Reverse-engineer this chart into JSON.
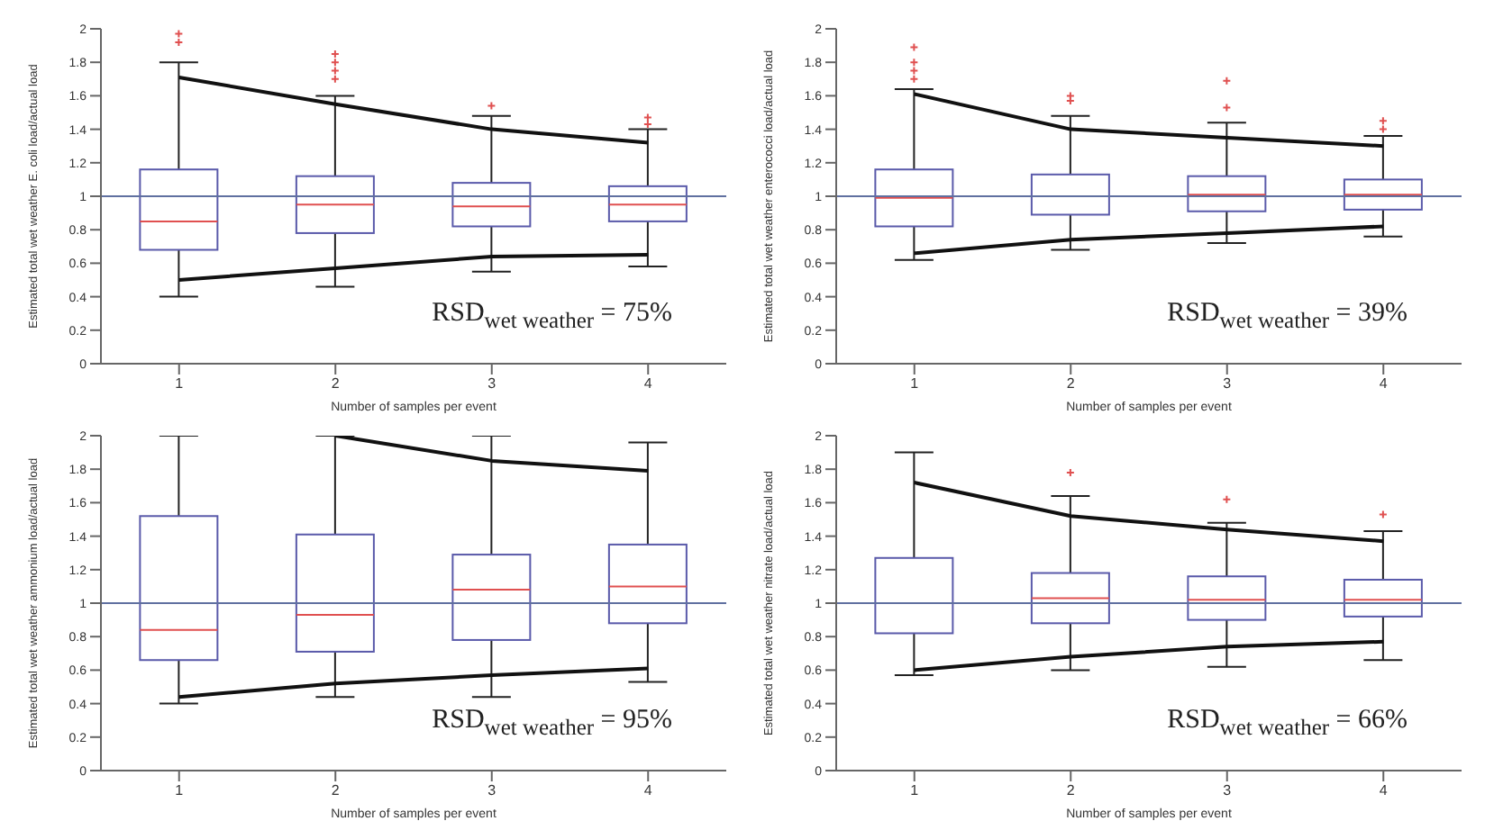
{
  "chart_data": [
    {
      "type": "box",
      "xlabel": "Number of samples per event",
      "ylabel": "Estimated total wet weather E. coli load/actual load",
      "categories": [
        "1",
        "2",
        "3",
        "4"
      ],
      "ylim": [
        0,
        2
      ],
      "yticks": [
        0,
        0.2,
        0.4,
        0.6,
        0.8,
        1,
        1.2,
        1.4,
        1.6,
        1.8,
        2
      ],
      "ref_lines": [
        {
          "axis": "y",
          "value": 1,
          "color": "#6070a0"
        }
      ],
      "annotations": [
        "RSD$_{wet weather}$ = 75%"
      ],
      "series": [
        {
          "color": "#5a5aaa",
          "boxes": [
            {
              "low": 0.4,
              "q1": 0.68,
              "median": 0.85,
              "q3": 1.16,
              "high": 1.8,
              "outliers": [
                1.92,
                1.97
              ]
            },
            {
              "low": 0.46,
              "q1": 0.78,
              "median": 0.95,
              "q3": 1.12,
              "high": 1.6,
              "outliers": [
                1.7,
                1.75,
                1.8,
                1.85
              ]
            },
            {
              "low": 0.55,
              "q1": 0.82,
              "median": 0.94,
              "q3": 1.08,
              "high": 1.48,
              "outliers": [
                1.54
              ]
            },
            {
              "low": 0.58,
              "q1": 0.85,
              "median": 0.95,
              "q3": 1.06,
              "high": 1.4,
              "outliers": [
                1.43,
                1.47
              ]
            }
          ]
        },
        {
          "type": "line",
          "color": "#111111",
          "values": [
            1.71,
            1.55,
            1.4,
            1.32
          ]
        },
        {
          "type": "line",
          "color": "#111111",
          "values": [
            0.5,
            0.57,
            0.64,
            0.65
          ]
        }
      ]
    },
    {
      "type": "box",
      "xlabel": "Number of samples per event",
      "ylabel": "Estimated total wet weather enterococci load/actual load",
      "categories": [
        "1",
        "2",
        "3",
        "4"
      ],
      "ylim": [
        0,
        2
      ],
      "yticks": [
        0,
        0.2,
        0.4,
        0.6,
        0.8,
        1,
        1.2,
        1.4,
        1.6,
        1.8,
        2
      ],
      "ref_lines": [
        {
          "axis": "y",
          "value": 1,
          "color": "#6070a0"
        }
      ],
      "annotations": [
        "RSD$_{wet weather}$ = 39%"
      ],
      "series": [
        {
          "color": "#5a5aaa",
          "boxes": [
            {
              "low": 0.62,
              "q1": 0.82,
              "median": 0.99,
              "q3": 1.16,
              "high": 1.64,
              "outliers": [
                1.7,
                1.75,
                1.8,
                1.89
              ]
            },
            {
              "low": 0.68,
              "q1": 0.89,
              "median": 1,
              "q3": 1.13,
              "high": 1.48,
              "outliers": [
                1.57,
                1.6
              ]
            },
            {
              "low": 0.72,
              "q1": 0.91,
              "median": 1.01,
              "q3": 1.12,
              "high": 1.44,
              "outliers": [
                1.53,
                1.69
              ]
            },
            {
              "low": 0.76,
              "q1": 0.92,
              "median": 1.01,
              "q3": 1.1,
              "high": 1.36,
              "outliers": [
                1.4,
                1.45
              ]
            }
          ]
        },
        {
          "type": "line",
          "color": "#111111",
          "values": [
            1.61,
            1.4,
            1.35,
            1.3
          ]
        },
        {
          "type": "line",
          "color": "#111111",
          "values": [
            0.66,
            0.74,
            0.78,
            0.82
          ]
        }
      ]
    },
    {
      "type": "box",
      "xlabel": "Number of samples per event",
      "ylabel": "Estimated total wet weather ammonium load/actual load",
      "categories": [
        "1",
        "2",
        "3",
        "4"
      ],
      "ylim": [
        0,
        2
      ],
      "yticks": [
        0,
        0.2,
        0.4,
        0.6,
        0.8,
        1,
        1.2,
        1.4,
        1.6,
        1.8,
        2
      ],
      "ref_lines": [
        {
          "axis": "y",
          "value": 1,
          "color": "#6070a0"
        }
      ],
      "annotations": [
        "RSD$_{wet weather}$ = 95%"
      ],
      "series": [
        {
          "color": "#5a5aaa",
          "boxes": [
            {
              "low": 0.4,
              "q1": 0.66,
              "median": 0.84,
              "q3": 1.52,
              "high": 2
            },
            {
              "low": 0.44,
              "q1": 0.71,
              "median": 0.93,
              "q3": 1.41,
              "high": 2
            },
            {
              "low": 0.44,
              "q1": 0.78,
              "median": 1.08,
              "q3": 1.29,
              "high": 2
            },
            {
              "low": 0.53,
              "q1": 0.88,
              "median": 1.1,
              "q3": 1.35,
              "high": 1.96
            }
          ]
        },
        {
          "type": "line",
          "color": "#111111",
          "values": [
            null,
            2,
            1.85,
            1.79
          ]
        },
        {
          "type": "line",
          "color": "#111111",
          "values": [
            0.44,
            0.52,
            0.57,
            0.61
          ]
        }
      ]
    },
    {
      "type": "box",
      "xlabel": "Number of samples per event",
      "ylabel": "Estimated total wet weather nitrate load/actual load",
      "categories": [
        "1",
        "2",
        "3",
        "4"
      ],
      "ylim": [
        0,
        2
      ],
      "yticks": [
        0,
        0.2,
        0.4,
        0.6,
        0.8,
        1,
        1.2,
        1.4,
        1.6,
        1.8,
        2
      ],
      "ref_lines": [
        {
          "axis": "y",
          "value": 1,
          "color": "#6070a0"
        }
      ],
      "annotations": [
        "RSD$_{wet weather}$ = 66%"
      ],
      "series": [
        {
          "color": "#5a5aaa",
          "boxes": [
            {
              "low": 0.57,
              "q1": 0.82,
              "median": 1,
              "q3": 1.27,
              "high": 1.9
            },
            {
              "low": 0.6,
              "q1": 0.88,
              "median": 1.03,
              "q3": 1.18,
              "high": 1.64,
              "outliers": [
                1.78
              ]
            },
            {
              "low": 0.62,
              "q1": 0.9,
              "median": 1.02,
              "q3": 1.16,
              "high": 1.48,
              "outliers": [
                1.62
              ]
            },
            {
              "low": 0.66,
              "q1": 0.92,
              "median": 1.02,
              "q3": 1.14,
              "high": 1.43,
              "outliers": [
                1.53
              ]
            }
          ]
        },
        {
          "type": "line",
          "color": "#111111",
          "values": [
            1.72,
            1.52,
            1.44,
            1.37
          ]
        },
        {
          "type": "line",
          "color": "#111111",
          "values": [
            0.6,
            0.68,
            0.74,
            0.77
          ]
        }
      ]
    }
  ]
}
